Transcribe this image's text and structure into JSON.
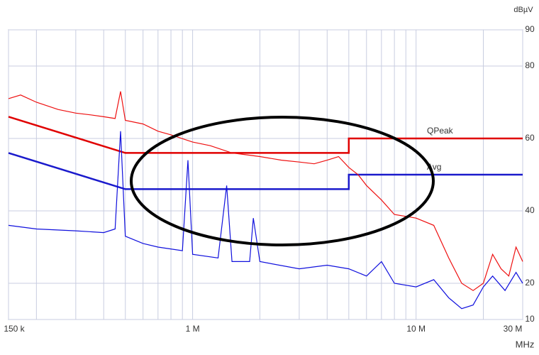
{
  "chart_data": {
    "type": "line",
    "log_x": true,
    "grid": true,
    "x_unit": "MHz",
    "y_unit": "dBµV",
    "xlim": [
      0.15,
      30
    ],
    "ylim": [
      10,
      90
    ],
    "xticks": [
      {
        "value": 0.15,
        "label": "150 k"
      },
      {
        "value": 1,
        "label": "1 M"
      },
      {
        "value": 10,
        "label": "10 M"
      },
      {
        "value": 30,
        "label": "30 M"
      }
    ],
    "xgrid": [
      0.2,
      0.3,
      0.4,
      0.5,
      0.6,
      0.7,
      0.8,
      0.9,
      2,
      3,
      4,
      5,
      6,
      7,
      8,
      9,
      20
    ],
    "yticks": [
      10,
      20,
      40,
      60,
      80,
      90
    ],
    "series": [
      {
        "name": "QPeak",
        "color": "#e00000",
        "x": [
          0.15,
          0.5,
          5,
          5,
          30
        ],
        "values": [
          66,
          56,
          56,
          60,
          60
        ]
      },
      {
        "name": "Avg",
        "color": "#1a1acc",
        "x": [
          0.15,
          0.5,
          5,
          5,
          30
        ],
        "values": [
          56,
          46,
          46,
          50,
          50
        ]
      },
      {
        "color": "#ee1010",
        "x": [
          0.15,
          0.17,
          0.2,
          0.25,
          0.3,
          0.35,
          0.4,
          0.45,
          0.476,
          0.5,
          0.6,
          0.7,
          0.8,
          1.0,
          1.2,
          1.5,
          2,
          2.5,
          3,
          3.5,
          4,
          4.5,
          5,
          5.5,
          6,
          7,
          8,
          10,
          12,
          14,
          16,
          18,
          20,
          22,
          24,
          26,
          28,
          30
        ],
        "values": [
          71,
          72,
          70,
          68,
          67,
          66.5,
          66,
          65.5,
          73,
          65,
          64,
          62,
          61,
          59,
          58,
          56,
          55,
          54,
          53.5,
          53,
          54,
          55,
          52,
          50,
          47,
          43,
          39,
          38,
          36,
          27,
          20,
          18,
          20,
          28,
          24,
          22,
          30,
          26
        ]
      },
      {
        "color": "#1010dd",
        "x": [
          0.15,
          0.2,
          0.3,
          0.4,
          0.45,
          0.476,
          0.5,
          0.6,
          0.7,
          0.9,
          0.953,
          1.0,
          1.3,
          1.42,
          1.5,
          1.8,
          1.87,
          2,
          3,
          4,
          5,
          6,
          7,
          8,
          10,
          12,
          14,
          16,
          18,
          20,
          22,
          25,
          28,
          30
        ],
        "values": [
          36,
          35,
          34.5,
          34,
          35,
          62,
          33,
          31,
          30,
          29,
          54,
          28,
          27,
          47,
          26,
          26,
          38,
          26,
          24,
          25,
          24,
          22,
          26,
          20,
          19,
          21,
          16,
          13,
          14,
          19,
          22,
          18,
          23,
          20
        ]
      }
    ]
  }
}
